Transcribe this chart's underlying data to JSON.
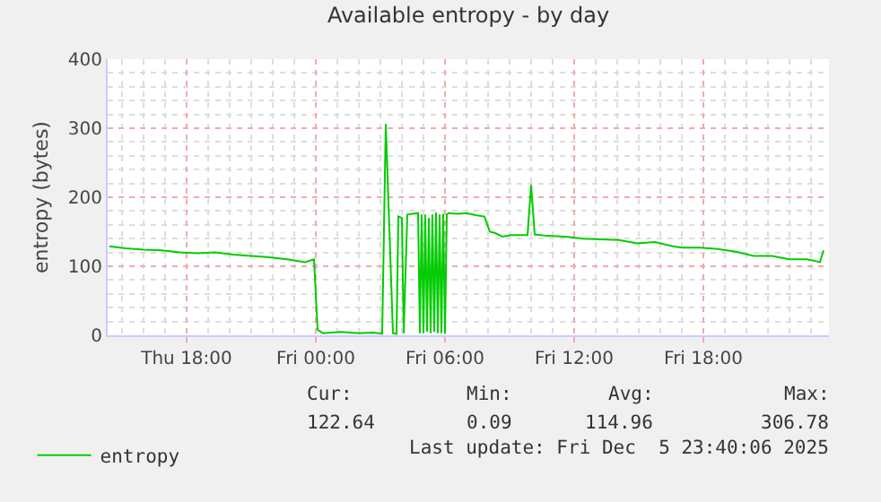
{
  "chart_data": {
    "type": "line",
    "title": "Available entropy - by day",
    "ylabel": "entropy (bytes)",
    "x": [
      "2025-12-04T14:25",
      "2025-12-04T15:10",
      "2025-12-04T16:00",
      "2025-12-04T16:50",
      "2025-12-04T17:40",
      "2025-12-04T18:30",
      "2025-12-04T19:20",
      "2025-12-04T20:10",
      "2025-12-04T21:00",
      "2025-12-04T21:50",
      "2025-12-04T22:40",
      "2025-12-04T23:30",
      "2025-12-04T23:55",
      "2025-12-05T00:05",
      "2025-12-05T00:20",
      "2025-12-05T01:10",
      "2025-12-05T02:00",
      "2025-12-05T02:40",
      "2025-12-05T03:05",
      "2025-12-05T03:15",
      "2025-12-05T03:35",
      "2025-12-05T03:45",
      "2025-12-05T03:50",
      "2025-12-05T04:00",
      "2025-12-05T04:05",
      "2025-12-05T04:15",
      "2025-12-05T04:45",
      "2025-12-05T04:50",
      "2025-12-05T04:55",
      "2025-12-05T05:00",
      "2025-12-05T05:05",
      "2025-12-05T05:10",
      "2025-12-05T05:15",
      "2025-12-05T05:20",
      "2025-12-05T05:25",
      "2025-12-05T05:30",
      "2025-12-05T05:35",
      "2025-12-05T05:40",
      "2025-12-05T05:45",
      "2025-12-05T05:50",
      "2025-12-05T05:55",
      "2025-12-05T06:00",
      "2025-12-05T06:05",
      "2025-12-05T06:10",
      "2025-12-05T06:35",
      "2025-12-05T07:00",
      "2025-12-05T07:25",
      "2025-12-05T07:50",
      "2025-12-05T08:05",
      "2025-12-05T08:20",
      "2025-12-05T08:40",
      "2025-12-05T09:05",
      "2025-12-05T09:50",
      "2025-12-05T10:00",
      "2025-12-05T10:10",
      "2025-12-05T10:45",
      "2025-12-05T11:35",
      "2025-12-05T12:25",
      "2025-12-05T13:15",
      "2025-12-05T14:05",
      "2025-12-05T14:55",
      "2025-12-05T15:45",
      "2025-12-05T16:35",
      "2025-12-05T17:00",
      "2025-12-05T17:50",
      "2025-12-05T18:40",
      "2025-12-05T19:30",
      "2025-12-05T20:20",
      "2025-12-05T21:10",
      "2025-12-05T22:00",
      "2025-12-05T22:50",
      "2025-12-05T23:25",
      "2025-12-05T23:35"
    ],
    "series": [
      {
        "name": "entropy",
        "color": "#00cc00",
        "values": [
          129,
          126,
          124,
          123,
          120,
          119,
          120,
          117,
          115,
          113,
          110,
          106,
          110,
          8,
          3,
          5,
          3,
          4,
          2,
          306,
          3,
          2,
          172,
          170,
          3,
          175,
          177,
          3,
          175,
          3,
          175,
          5,
          170,
          3,
          175,
          5,
          178,
          3,
          175,
          3,
          176,
          2,
          175,
          177,
          176,
          177,
          174,
          172,
          150,
          148,
          143,
          145,
          145,
          218,
          146,
          144,
          143,
          140,
          139,
          138,
          133,
          135,
          129,
          127,
          127,
          125,
          121,
          115,
          115,
          110,
          110,
          106,
          123
        ]
      }
    ],
    "xlim": [
      "2025-12-04T14:20",
      "2025-12-05T23:50"
    ],
    "xticks": [
      {
        "value": "2025-12-04T18:00",
        "label": "Thu 18:00"
      },
      {
        "value": "2025-12-05T00:00",
        "label": "Fri 00:00"
      },
      {
        "value": "2025-12-05T06:00",
        "label": "Fri 06:00"
      },
      {
        "value": "2025-12-05T12:00",
        "label": "Fri 12:00"
      },
      {
        "value": "2025-12-05T18:00",
        "label": "Fri 18:00"
      }
    ],
    "ylim": [
      0,
      400
    ],
    "yticks": [
      0,
      100,
      200,
      300,
      400
    ],
    "grid": true,
    "legend": "bottom left",
    "marker": "none",
    "line_style": "solid",
    "annotations": [
      "Cur:",
      "Min:",
      "Avg:",
      "Max:",
      "122.64",
      "0.09",
      "114.96",
      "306.78",
      "Last update: Fri Dec  5 23:40:06 2025"
    ]
  }
}
